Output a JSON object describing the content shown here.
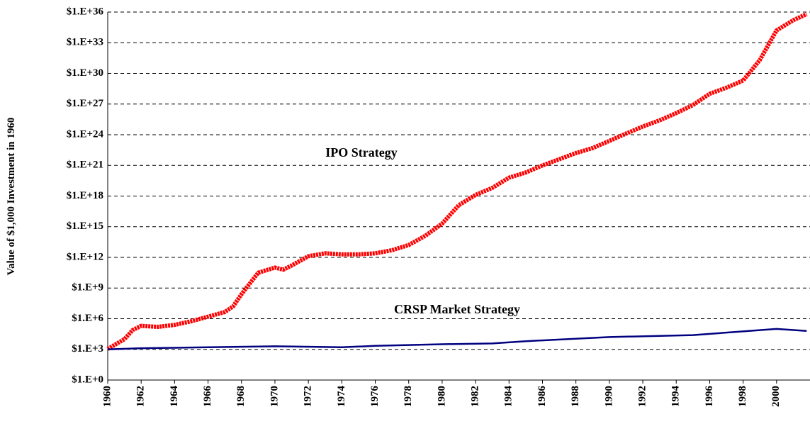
{
  "chart_data": {
    "type": "line",
    "y_label": "Value of $1,000 Investment in 1960",
    "annotations": [
      "IPO Strategy",
      "CRSP Market Strategy"
    ],
    "log_scale": true,
    "grid": true,
    "xlim": [
      1960,
      2002
    ],
    "xticks": [
      1960,
      1962,
      1964,
      1966,
      1968,
      1970,
      1972,
      1974,
      1976,
      1978,
      1980,
      1982,
      1984,
      1986,
      1988,
      1990,
      1992,
      1994,
      1996,
      1998,
      2000
    ],
    "ylim": [
      1,
      1e+36
    ],
    "yticks": [
      {
        "value": 1,
        "label": "$1.E+0"
      },
      {
        "value": 1000.0,
        "label": "$1.E+3"
      },
      {
        "value": 1000000.0,
        "label": "$1.E+6"
      },
      {
        "value": 1000000000.0,
        "label": "$1.E+9"
      },
      {
        "value": 1000000000000.0,
        "label": "$1.E+12"
      },
      {
        "value": 1000000000000000.0,
        "label": "$1.E+15"
      },
      {
        "value": 1e+18,
        "label": "$1.E+18"
      },
      {
        "value": 1e+21,
        "label": "$1.E+21"
      },
      {
        "value": 1e+24,
        "label": "$1.E+24"
      },
      {
        "value": 1e+27,
        "label": "$1.E+27"
      },
      {
        "value": 1e+30,
        "label": "$1.E+30"
      },
      {
        "value": 1e+33,
        "label": "$1.E+33"
      },
      {
        "value": 1e+36,
        "label": "$1.E+36"
      }
    ],
    "series": [
      {
        "name": "IPO Strategy",
        "color": "#ff0000",
        "x": [
          1960,
          1961,
          1961.5,
          1962,
          1963,
          1964,
          1965,
          1966,
          1967,
          1967.5,
          1968,
          1969,
          1970,
          1970.5,
          1971,
          1972,
          1973,
          1974,
          1975,
          1976,
          1977,
          1978,
          1979,
          1980,
          1981,
          1982,
          1983,
          1984,
          1985,
          1986,
          1987,
          1988,
          1989,
          1990,
          1991,
          1992,
          1993,
          1994,
          1995,
          1996,
          1997,
          1998,
          1999,
          2000,
          2001,
          2001.8
        ],
        "values": [
          1100.0,
          10000.0,
          79000.0,
          200000.0,
          160000.0,
          250000.0,
          560000.0,
          1600000.0,
          4500000.0,
          16000000.0,
          250000000.0,
          32000000000.0,
          100000000000.0,
          63000000000.0,
          160000000000.0,
          1300000000000.0,
          2500000000000.0,
          2000000000000.0,
          2000000000000.0,
          2500000000000.0,
          5000000000000.0,
          16000000000000.0,
          130000000000000.0,
          2000000000000000.0,
          1.3e+17,
          1.3e+18,
          6.3e+18,
          6.3e+19,
          2e+20,
          1e+21,
          4e+21,
          1.6e+22,
          5e+22,
          2.5e+23,
          1.3e+24,
          6.3e+24,
          2.5e+25,
          1.3e+26,
          7.9e+26,
          1e+28,
          4e+28,
          2e+29,
          2e+31,
          1.6e+34,
          1.6e+35,
          6.3e+35
        ]
      },
      {
        "name": "CRSP Market Strategy",
        "color": "#000080",
        "x": [
          1960,
          1962,
          1966,
          1970,
          1974,
          1976,
          1980,
          1983,
          1985,
          1990,
          1995,
          2000,
          2001.8
        ],
        "values": [
          1000.0,
          1300.0,
          1600.0,
          2000.0,
          1600.0,
          2200.0,
          3200.0,
          3800.0,
          6300.0,
          16000.0,
          25000.0,
          100000.0,
          63000.0
        ]
      }
    ]
  }
}
